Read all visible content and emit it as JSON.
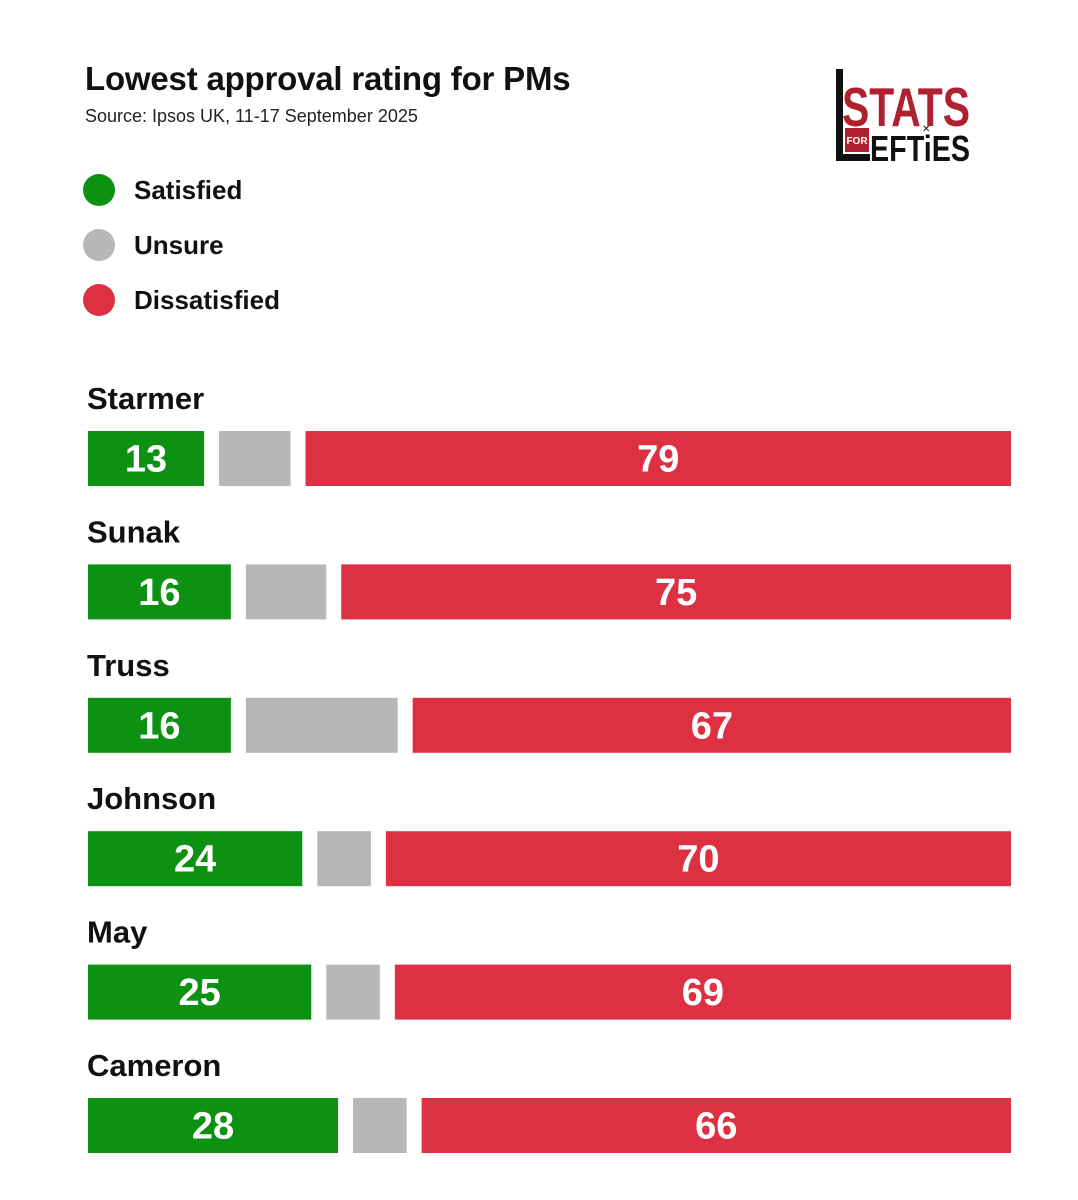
{
  "title": "Lowest approval rating for PMs",
  "subtitle": "Source: Ipsos UK, 11-17 September 2025",
  "logo": {
    "line1": "STATS",
    "for": "FOR",
    "line2": "EFTiES"
  },
  "colors": {
    "satisfied": "#0c9112",
    "unsure": "#b9b7b5",
    "dissatisfied": "#dd3143"
  },
  "legend": [
    {
      "label": "Satisfied",
      "color": "#0c9112"
    },
    {
      "label": "Unsure",
      "color": "#b9b7b5"
    },
    {
      "label": "Dissatisfied",
      "color": "#dd3143"
    }
  ],
  "chart_data": {
    "type": "bar",
    "stacked": true,
    "orientation": "horizontal",
    "categories": [
      "Starmer",
      "Sunak",
      "Truss",
      "Johnson",
      "May",
      "Cameron"
    ],
    "series": [
      {
        "name": "Satisfied",
        "values": [
          13,
          16,
          16,
          24,
          25,
          28
        ],
        "color": "#0c9112",
        "labels_shown": true
      },
      {
        "name": "Unsure",
        "values": [
          8,
          9,
          17,
          6,
          6,
          6
        ],
        "color": "#b9b7b5",
        "labels_shown": false
      },
      {
        "name": "Dissatisfied",
        "values": [
          79,
          75,
          67,
          70,
          69,
          66
        ],
        "color": "#dd3143",
        "labels_shown": true
      }
    ],
    "grid": false,
    "legend_position": "top-left"
  }
}
